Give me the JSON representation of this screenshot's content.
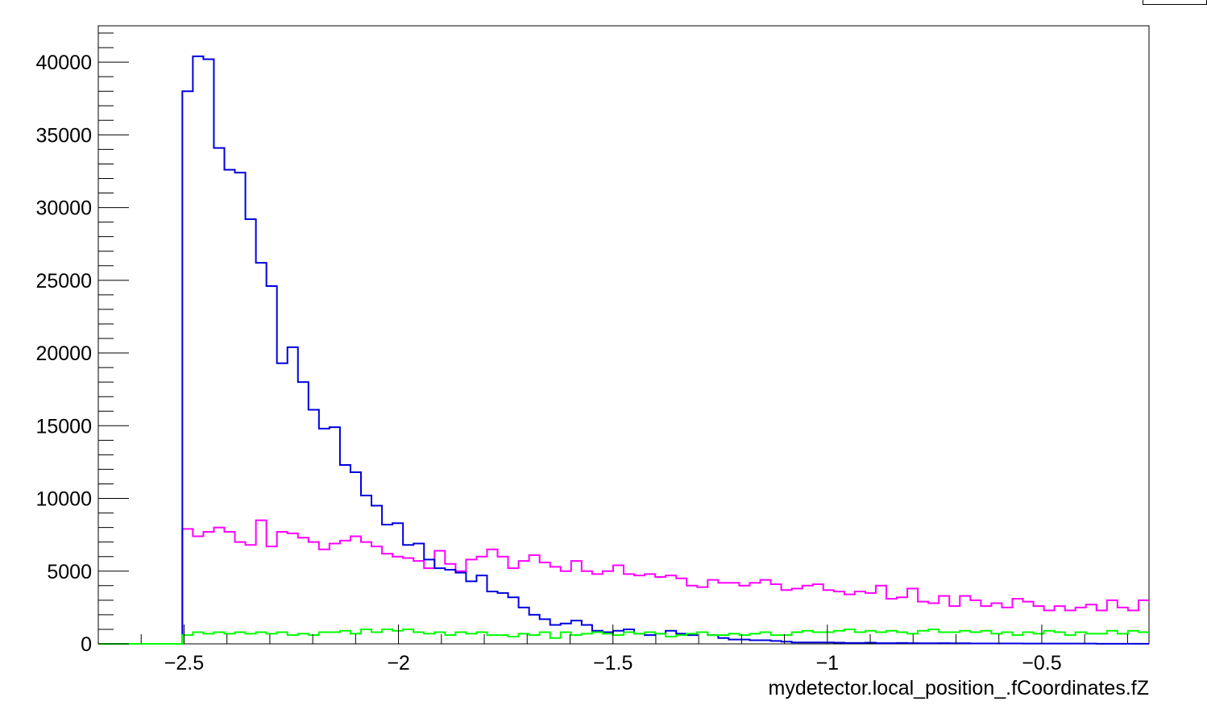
{
  "chart_data": {
    "type": "histogram",
    "title": "",
    "xlabel": "mydetector.local_position_.fCoordinates.fZ",
    "ylabel": "",
    "xlim": [
      -2.7,
      -0.25
    ],
    "ylim": [
      0,
      42500
    ],
    "grid": false,
    "bins": {
      "start": -2.7,
      "width": 0.0245,
      "count": 100
    },
    "x_ticks": [
      {
        "value": -2.5,
        "label": "−2.5"
      },
      {
        "value": -2.0,
        "label": "−2"
      },
      {
        "value": -1.5,
        "label": "−1.5"
      },
      {
        "value": -1.0,
        "label": "−1"
      },
      {
        "value": -0.5,
        "label": "−0.5"
      }
    ],
    "y_ticks": [
      {
        "value": 0,
        "label": "0"
      },
      {
        "value": 5000,
        "label": "5000"
      },
      {
        "value": 10000,
        "label": "10000"
      },
      {
        "value": 15000,
        "label": "15000"
      },
      {
        "value": 20000,
        "label": "20000"
      },
      {
        "value": 25000,
        "label": "25000"
      },
      {
        "value": 30000,
        "label": "30000"
      },
      {
        "value": 35000,
        "label": "35000"
      },
      {
        "value": 40000,
        "label": "40000"
      }
    ],
    "series": [
      {
        "color": "#ff00ff",
        "values": [
          0,
          0,
          0,
          0,
          0,
          0,
          0,
          0,
          7900,
          7400,
          7700,
          8000,
          7700,
          7000,
          6800,
          8500,
          6700,
          7700,
          7600,
          7300,
          7000,
          6500,
          6900,
          7100,
          7400,
          7000,
          6700,
          6200,
          6000,
          5900,
          5700,
          5200,
          6400,
          5500,
          5000,
          5800,
          6000,
          6500,
          6000,
          5200,
          5700,
          6100,
          5600,
          5300,
          5000,
          5700,
          5000,
          4800,
          5000,
          5400,
          4800,
          4700,
          4800,
          4600,
          4700,
          4500,
          4000,
          3900,
          4400,
          4200,
          4200,
          4000,
          4200,
          4400,
          4100,
          3700,
          3800,
          4000,
          4100,
          3700,
          3600,
          3400,
          3600,
          3500,
          4000,
          3100,
          3200,
          3800,
          2900,
          2800,
          3300,
          2600,
          3300,
          3000,
          2600,
          2800,
          2500,
          3100,
          2900,
          2600,
          2300,
          2600,
          2300,
          2500,
          2700,
          2300,
          3000,
          2500,
          2300,
          3000
        ]
      },
      {
        "color": "#0000dd",
        "values": [
          0,
          0,
          0,
          0,
          0,
          0,
          0,
          0,
          38000,
          40400,
          40200,
          34100,
          32600,
          32400,
          29200,
          26200,
          24600,
          19300,
          20400,
          18000,
          16100,
          14800,
          14900,
          12300,
          11800,
          10200,
          9500,
          8200,
          8300,
          6800,
          6900,
          5800,
          5200,
          5100,
          4900,
          4300,
          4700,
          3600,
          3500,
          3200,
          2500,
          2000,
          1700,
          1300,
          1400,
          1600,
          1300,
          900,
          800,
          900,
          1000,
          700,
          600,
          700,
          900,
          700,
          600,
          800,
          600,
          400,
          300,
          300,
          250,
          250,
          200,
          150,
          100,
          100,
          100,
          100,
          80,
          60,
          60,
          80,
          50,
          50,
          60,
          50,
          40,
          40,
          50,
          40,
          40,
          30,
          30,
          30,
          30,
          30,
          20,
          20,
          20,
          20,
          20,
          20,
          20,
          10,
          10,
          10,
          10,
          10
        ]
      },
      {
        "color": "#00ff00",
        "values": [
          0,
          0,
          0,
          0,
          0,
          0,
          0,
          0,
          600,
          800,
          700,
          800,
          700,
          800,
          700,
          800,
          700,
          800,
          600,
          700,
          600,
          800,
          800,
          900,
          700,
          1000,
          800,
          1000,
          900,
          1000,
          800,
          700,
          800,
          600,
          800,
          700,
          800,
          600,
          600,
          500,
          700,
          600,
          800,
          400,
          800,
          600,
          700,
          800,
          700,
          600,
          800,
          700,
          800,
          700,
          500,
          600,
          700,
          800,
          600,
          600,
          700,
          600,
          700,
          800,
          600,
          600,
          800,
          900,
          800,
          800,
          900,
          1000,
          800,
          900,
          800,
          900,
          800,
          700,
          900,
          1000,
          800,
          800,
          900,
          800,
          900,
          700,
          800,
          600,
          800,
          700,
          900,
          800,
          600,
          800,
          700,
          700,
          900,
          700,
          900,
          800
        ]
      }
    ]
  }
}
